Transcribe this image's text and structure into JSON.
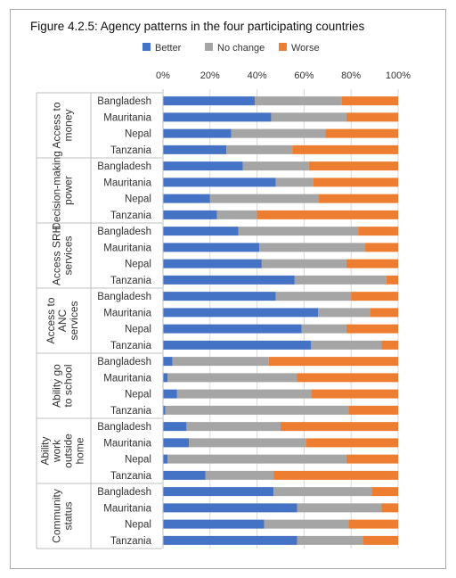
{
  "chart_data": {
    "type": "bar",
    "stacked": true,
    "orientation": "horizontal",
    "title": "Figure 4.2.5: Agency patterns in the four participating countries",
    "legend": [
      {
        "name": "Better",
        "color": "#4472c4"
      },
      {
        "name": "No change",
        "color": "#a5a5a5"
      },
      {
        "name": "Worse",
        "color": "#ed7d31"
      }
    ],
    "legend_position": "top",
    "xlim": [
      0,
      100
    ],
    "x_ticks": [
      "0%",
      "20%",
      "40%",
      "60%",
      "80%",
      "100%"
    ],
    "grid": true,
    "groups": [
      {
        "label": "Access to money",
        "rows": [
          {
            "category": "Bangladesh",
            "better": 39,
            "no_change": 37,
            "worse": 24
          },
          {
            "category": "Mauritania",
            "better": 46,
            "no_change": 32,
            "worse": 22
          },
          {
            "category": "Nepal",
            "better": 29,
            "no_change": 40,
            "worse": 31
          },
          {
            "category": "Tanzania",
            "better": 27,
            "no_change": 28,
            "worse": 45
          }
        ]
      },
      {
        "label": "Decision-making power",
        "rows": [
          {
            "category": "Bangladesh",
            "better": 34,
            "no_change": 28,
            "worse": 38
          },
          {
            "category": "Mauritania",
            "better": 48,
            "no_change": 16,
            "worse": 36
          },
          {
            "category": "Nepal",
            "better": 20,
            "no_change": 46,
            "worse": 34
          },
          {
            "category": "Tanzania",
            "better": 23,
            "no_change": 17,
            "worse": 60
          }
        ]
      },
      {
        "label": "Access SRH services",
        "rows": [
          {
            "category": "Bangladesh",
            "better": 32,
            "no_change": 51,
            "worse": 17
          },
          {
            "category": "Mauritania",
            "better": 41,
            "no_change": 45,
            "worse": 14
          },
          {
            "category": "Nepal",
            "better": 42,
            "no_change": 36,
            "worse": 22
          },
          {
            "category": "Tanzania",
            "better": 56,
            "no_change": 39,
            "worse": 5
          }
        ]
      },
      {
        "label": "Access to ANC services",
        "rows": [
          {
            "category": "Bangladesh",
            "better": 48,
            "no_change": 32,
            "worse": 20
          },
          {
            "category": "Mauritania",
            "better": 66,
            "no_change": 22,
            "worse": 12
          },
          {
            "category": "Nepal",
            "better": 59,
            "no_change": 19,
            "worse": 22
          },
          {
            "category": "Tanzania",
            "better": 63,
            "no_change": 30,
            "worse": 7
          }
        ]
      },
      {
        "label": "Ability go to school",
        "rows": [
          {
            "category": "Bangladesh",
            "better": 4,
            "no_change": 41,
            "worse": 55
          },
          {
            "category": "Mauritania",
            "better": 2,
            "no_change": 55,
            "worse": 43
          },
          {
            "category": "Nepal",
            "better": 6,
            "no_change": 57,
            "worse": 37
          },
          {
            "category": "Tanzania",
            "better": 1,
            "no_change": 78,
            "worse": 21
          }
        ]
      },
      {
        "label": "Ability work outside home",
        "rows": [
          {
            "category": "Bangladesh",
            "better": 10,
            "no_change": 40,
            "worse": 50
          },
          {
            "category": "Mauritania",
            "better": 11,
            "no_change": 50,
            "worse": 39
          },
          {
            "category": "Nepal",
            "better": 2,
            "no_change": 76,
            "worse": 22
          },
          {
            "category": "Tanzania",
            "better": 18,
            "no_change": 29,
            "worse": 53
          }
        ]
      },
      {
        "label": "Community status",
        "rows": [
          {
            "category": "Bangladesh",
            "better": 47,
            "no_change": 42,
            "worse": 11
          },
          {
            "category": "Mauritania",
            "better": 57,
            "no_change": 36,
            "worse": 7
          },
          {
            "category": "Nepal",
            "better": 43,
            "no_change": 36,
            "worse": 21
          },
          {
            "category": "Tanzania",
            "better": 57,
            "no_change": 28,
            "worse": 15
          }
        ]
      }
    ]
  }
}
